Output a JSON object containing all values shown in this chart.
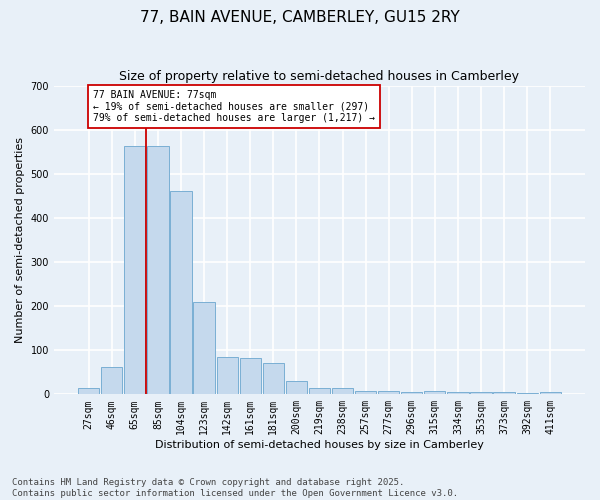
{
  "title": "77, BAIN AVENUE, CAMBERLEY, GU15 2RY",
  "subtitle": "Size of property relative to semi-detached houses in Camberley",
  "xlabel": "Distribution of semi-detached houses by size in Camberley",
  "ylabel": "Number of semi-detached properties",
  "categories": [
    "27sqm",
    "46sqm",
    "65sqm",
    "85sqm",
    "104sqm",
    "123sqm",
    "142sqm",
    "161sqm",
    "181sqm",
    "200sqm",
    "219sqm",
    "238sqm",
    "257sqm",
    "277sqm",
    "296sqm",
    "315sqm",
    "334sqm",
    "353sqm",
    "373sqm",
    "392sqm",
    "411sqm"
  ],
  "values": [
    15,
    62,
    563,
    562,
    461,
    209,
    85,
    83,
    70,
    30,
    15,
    15,
    8,
    8,
    5,
    8,
    5,
    5,
    5,
    2,
    5
  ],
  "bar_color": "#c5d9ed",
  "bar_edge_color": "#7aafd4",
  "background_color": "#e8f0f8",
  "grid_color": "#ffffff",
  "vline_x_index": 2,
  "vline_color": "#cc0000",
  "annotation_text": "77 BAIN AVENUE: 77sqm\n← 19% of semi-detached houses are smaller (297)\n79% of semi-detached houses are larger (1,217) →",
  "annotation_box_color": "#ffffff",
  "annotation_box_edgecolor": "#cc0000",
  "ylim": [
    0,
    700
  ],
  "yticks": [
    0,
    100,
    200,
    300,
    400,
    500,
    600,
    700
  ],
  "footer_text": "Contains HM Land Registry data © Crown copyright and database right 2025.\nContains public sector information licensed under the Open Government Licence v3.0.",
  "title_fontsize": 11,
  "subtitle_fontsize": 9,
  "axis_label_fontsize": 8,
  "tick_fontsize": 7,
  "footer_fontsize": 6.5,
  "annotation_fontsize": 7
}
